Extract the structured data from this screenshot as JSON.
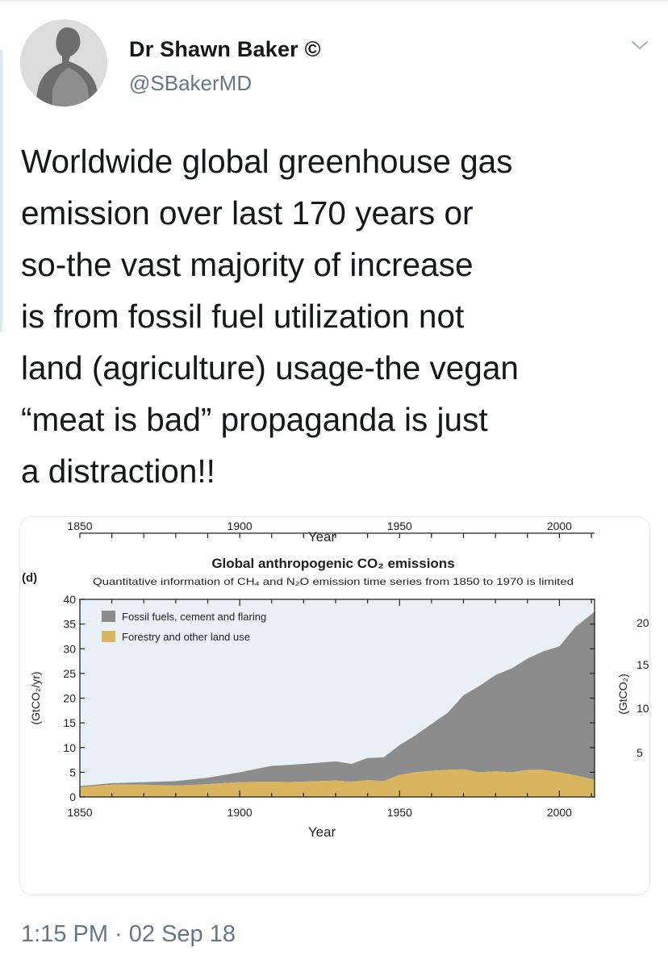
{
  "tweet": {
    "author_name": "Dr Shawn Baker ©",
    "author_handle": "@SBakerMD",
    "text_lines": [
      "Worldwide global greenhouse gas",
      "emission over last 170 years or",
      "so-the vast majority of increase",
      "is from fossil fuel utilization not",
      "land (agriculture) usage-the vegan",
      "“meat is bad” propaganda is just",
      "a distraction!!"
    ],
    "timestamp": "1:15 PM · 02 Sep 18",
    "icons": {
      "avatar": "avatar-photo",
      "more": "chevron-down-icon"
    }
  },
  "colors": {
    "fossil": "#8c8c8c",
    "land": "#d9b560",
    "plot_bg": "#e9f1f6",
    "secondary_text": "#657786"
  },
  "chart_data": {
    "type": "area",
    "panel_label": "(d)",
    "title": "Global anthropogenic CO₂ emissions",
    "subtitle": "Quantitative information of CH₄ and N₂O emission time series from 1850 to 1970 is limited",
    "xlabel": "Year",
    "ylabel": "(GtCO₂/yr)",
    "right_ylabel": "(GtCO₂)",
    "right_ticks": [
      "20",
      "15",
      "10",
      "5"
    ],
    "xlim": [
      1850,
      2011
    ],
    "ylim": [
      0,
      40
    ],
    "xticks": [
      1850,
      1900,
      1950,
      2000
    ],
    "yticks": [
      0,
      5,
      10,
      15,
      20,
      25,
      30,
      35,
      40
    ],
    "legend": [
      "Fossil fuels, cement and flaring",
      "Forestry and other land use"
    ],
    "legend_position": "top-left",
    "grid": false,
    "stacked": true,
    "x": [
      1850,
      1860,
      1870,
      1880,
      1890,
      1900,
      1910,
      1915,
      1920,
      1930,
      1935,
      1940,
      1945,
      1950,
      1955,
      1960,
      1965,
      1970,
      1975,
      1980,
      1985,
      1990,
      1995,
      2000,
      2005,
      2011
    ],
    "series": [
      {
        "name": "Forestry and other land use",
        "values": [
          2.0,
          2.5,
          2.5,
          2.3,
          2.6,
          3.0,
          3.1,
          3.0,
          3.1,
          3.3,
          3.1,
          3.4,
          3.2,
          4.5,
          5.0,
          5.3,
          5.5,
          5.6,
          5.0,
          5.2,
          5.0,
          5.5,
          5.5,
          5.0,
          4.4,
          3.5
        ]
      },
      {
        "name": "Fossil fuels, cement and flaring",
        "values": [
          0.2,
          0.3,
          0.5,
          0.9,
          1.3,
          2.0,
          3.2,
          3.5,
          3.6,
          3.9,
          3.6,
          4.5,
          4.8,
          6.0,
          7.5,
          9.5,
          11.5,
          15.0,
          17.5,
          19.5,
          21.0,
          22.5,
          24.0,
          25.5,
          30.0,
          34.0
        ]
      }
    ]
  }
}
